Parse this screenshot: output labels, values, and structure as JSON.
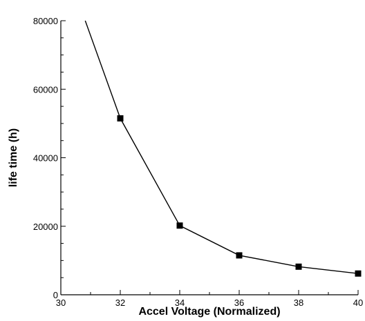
{
  "chart_data": {
    "type": "line",
    "title": "",
    "xlabel": "Accel Voltage (Normalized)",
    "ylabel": "life time (h)",
    "xlim": [
      30,
      40
    ],
    "ylim": [
      0,
      80000
    ],
    "x_ticks": [
      30,
      32,
      34,
      36,
      38,
      40
    ],
    "y_ticks": [
      0,
      20000,
      40000,
      60000,
      80000
    ],
    "grid": false,
    "series": [
      {
        "line": [
          {
            "x": 30.82,
            "y": 80000
          },
          {
            "x": 32,
            "y": 51500
          },
          {
            "x": 34,
            "y": 20200
          },
          {
            "x": 36,
            "y": 11500
          },
          {
            "x": 38,
            "y": 8200
          },
          {
            "x": 40,
            "y": 6200
          }
        ],
        "markers": [
          {
            "x": 32,
            "y": 51500
          },
          {
            "x": 34,
            "y": 20200
          },
          {
            "x": 36,
            "y": 11500
          },
          {
            "x": 38,
            "y": 8200
          },
          {
            "x": 40,
            "y": 6200
          }
        ],
        "color": "#000000",
        "marker": "square"
      }
    ]
  }
}
